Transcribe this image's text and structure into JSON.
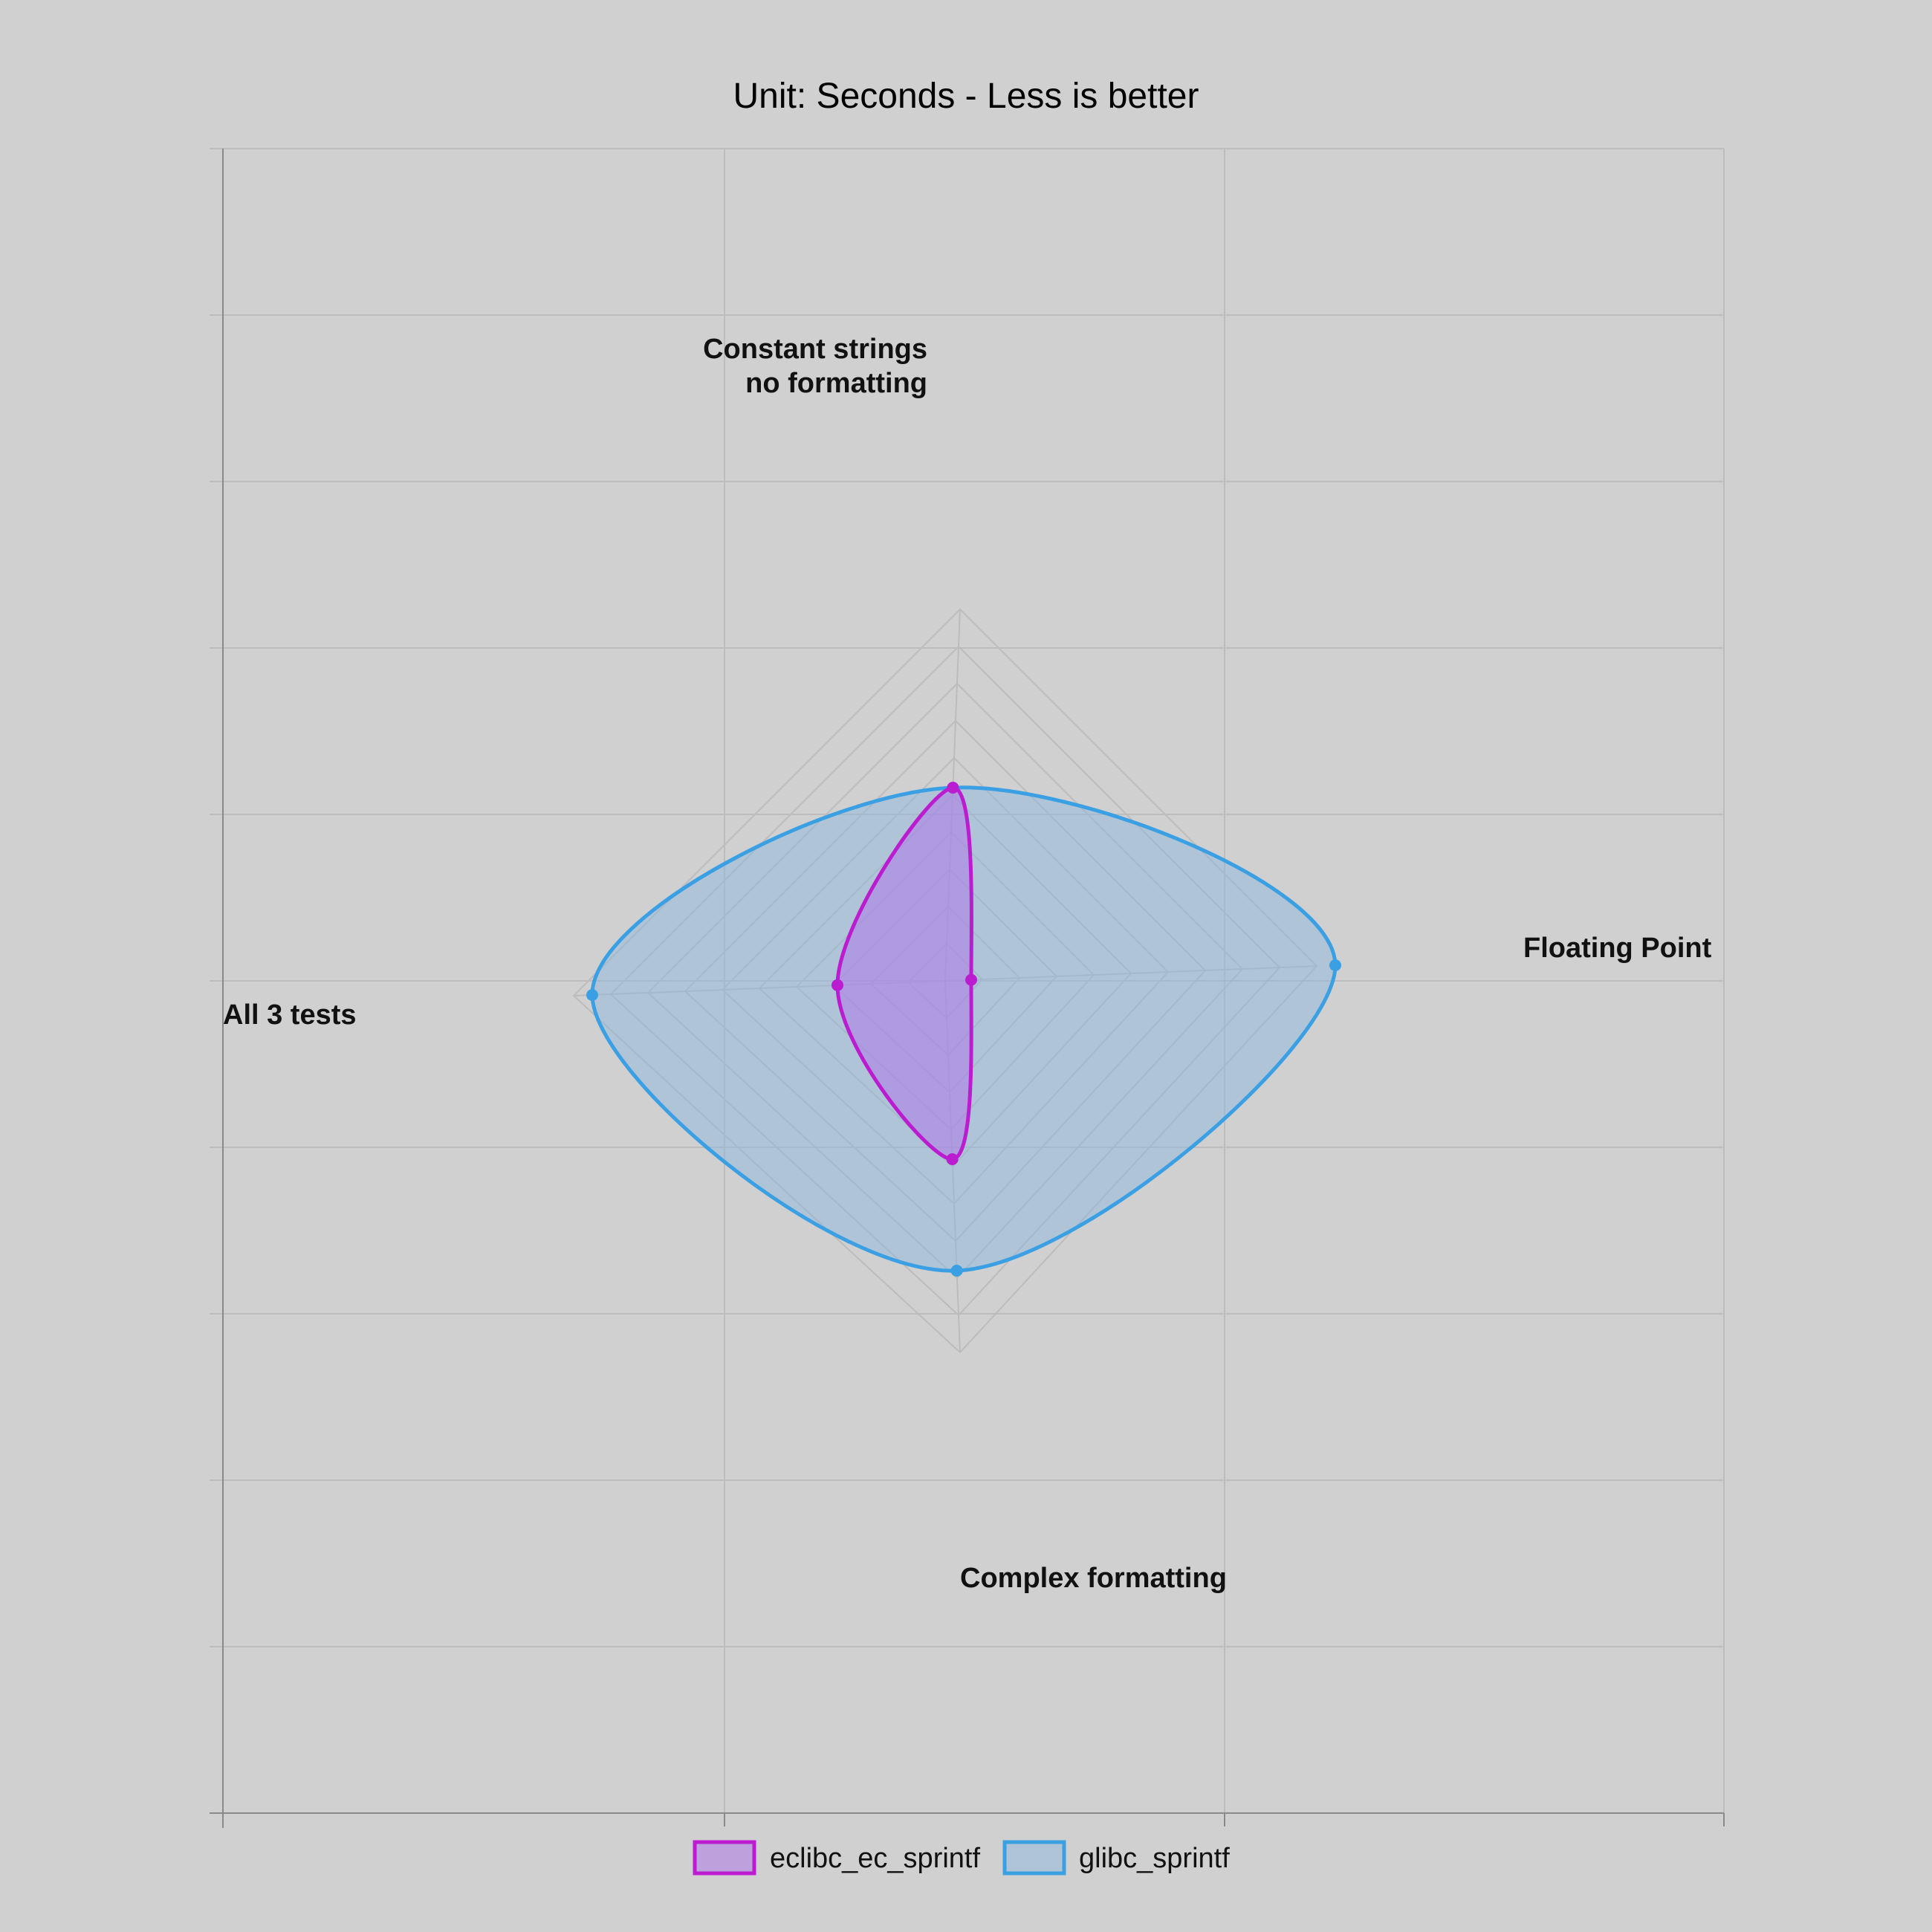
{
  "chart_data": {
    "type": "radar",
    "title": "Unit: Seconds - Less is better",
    "axes": [
      {
        "label_lines": [
          "Constant strings",
          "no formatting"
        ]
      },
      {
        "label_lines": [
          "Floating Point"
        ]
      },
      {
        "label_lines": [
          "Complex formatting"
        ]
      },
      {
        "label_lines": [
          "All 3 tests"
        ]
      }
    ],
    "rmax": 10,
    "rings": 10,
    "series": [
      {
        "name": "glibc_sprintf",
        "color": "#3b9fe3",
        "fill": "rgba(135,185,225,0.45)",
        "values": [
          5.2,
          10.5,
          7.8,
          9.5
        ]
      },
      {
        "name": "eclibc_ec_sprintf",
        "color": "#bb1cd0",
        "fill": "rgba(175,120,230,0.55)",
        "values": [
          5.2,
          0.7,
          4.8,
          2.9
        ]
      }
    ],
    "legend": {
      "position": "bottom",
      "order": [
        "eclibc_ec_sprintf",
        "glibc_sprintf"
      ]
    },
    "grid": true
  }
}
